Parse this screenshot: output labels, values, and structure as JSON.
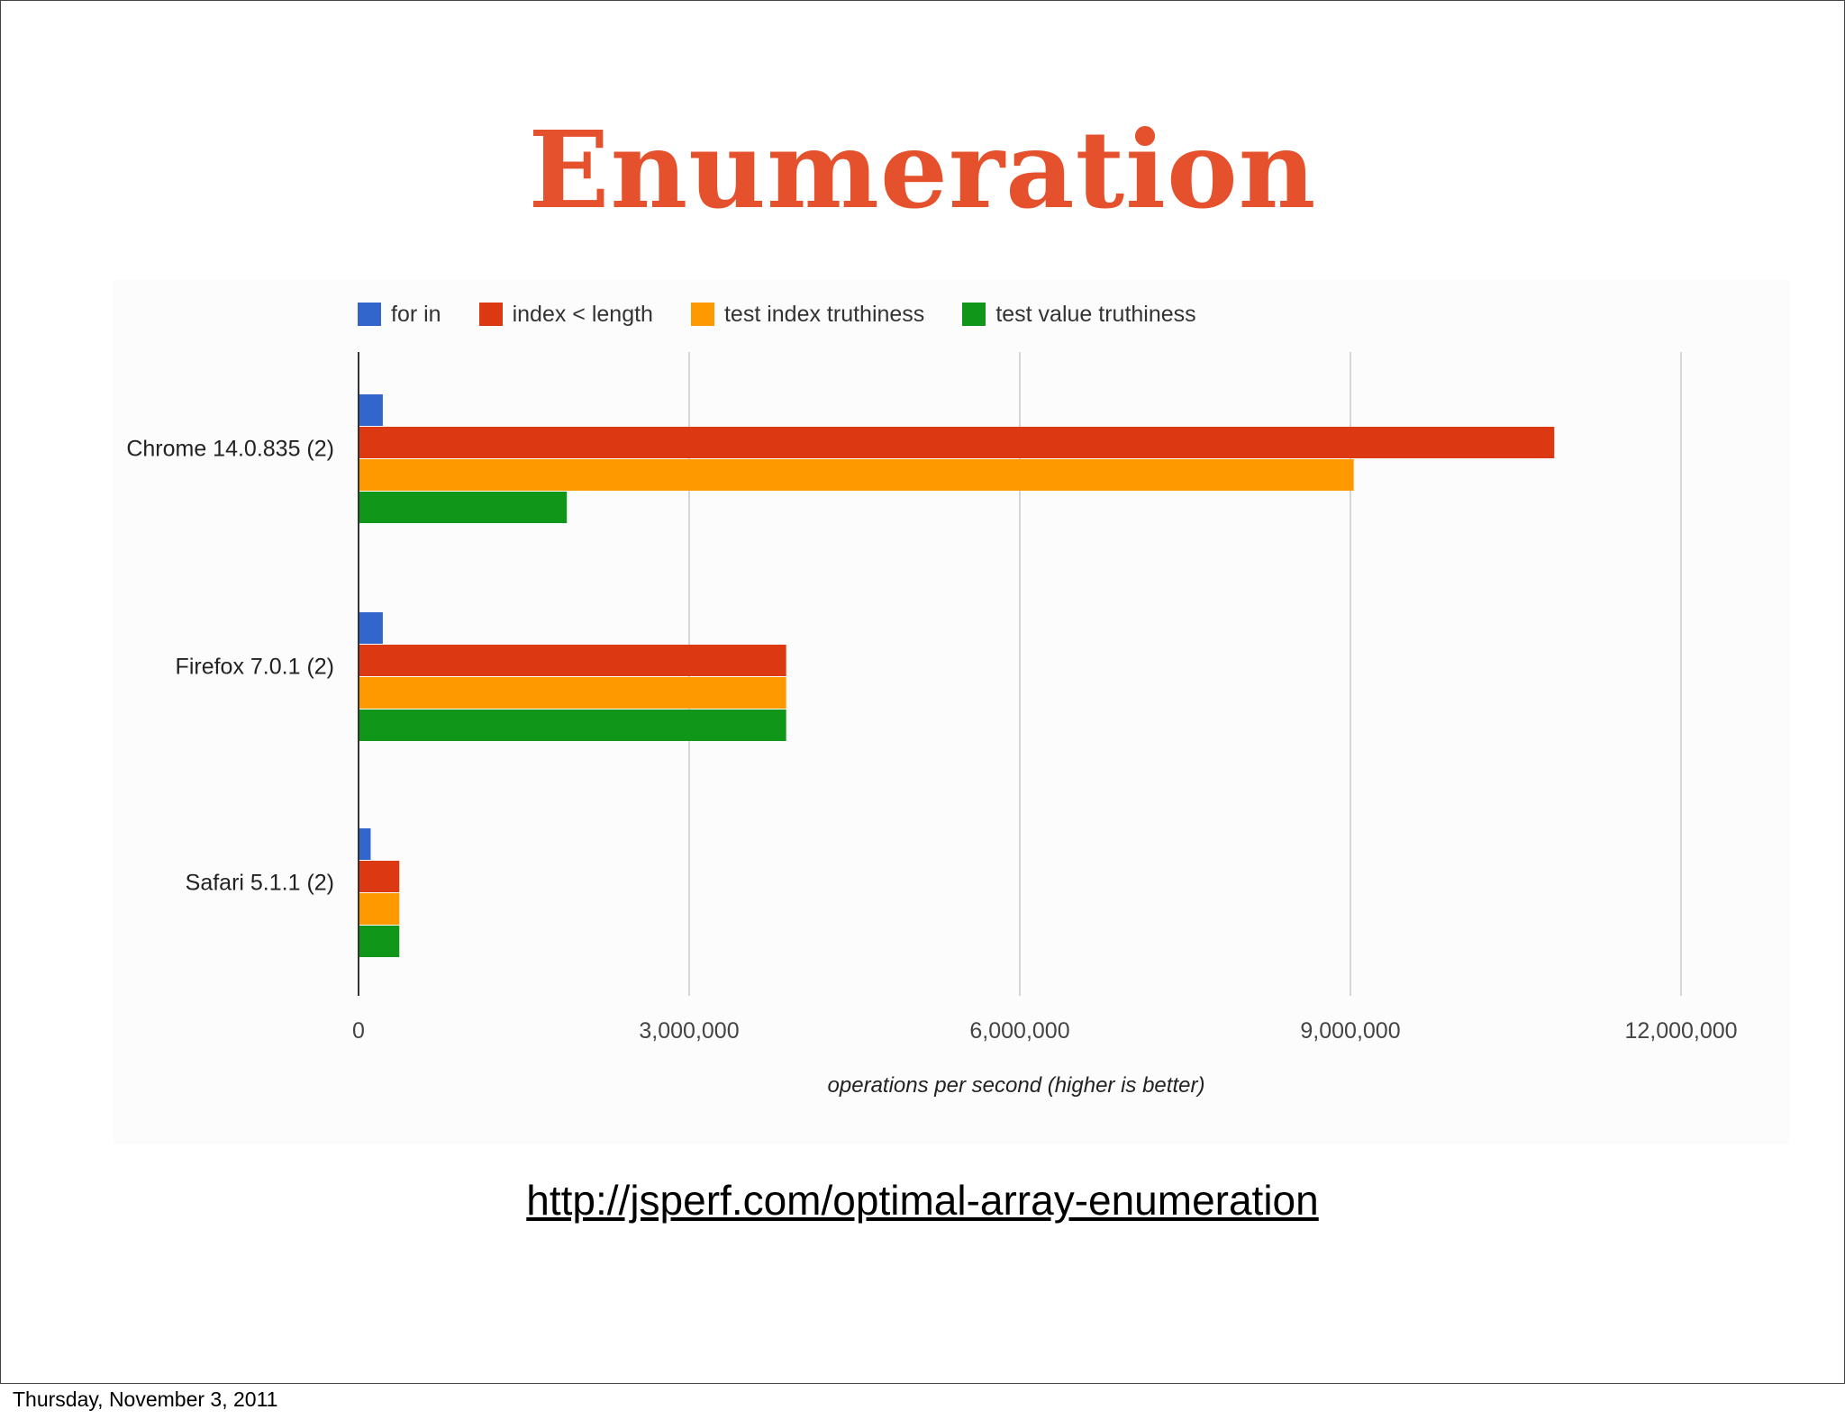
{
  "slide": {
    "title": "Enumeration",
    "link": "http://jsperf.com/optimal-array-enumeration",
    "footer_date": "Thursday, November 3, 2011"
  },
  "chart_data": {
    "type": "bar",
    "orientation": "horizontal",
    "categories": [
      "Chrome 14.0.835 (2)",
      "Firefox 7.0.1 (2)",
      "Safari 5.1.1 (2)"
    ],
    "series": [
      {
        "name": "for in",
        "color": "#3366cc",
        "values": [
          220000,
          220000,
          110000
        ]
      },
      {
        "name": "index < length",
        "color": "#dc3912",
        "values": [
          10850000,
          3880000,
          370000
        ]
      },
      {
        "name": "test index truthiness",
        "color": "#ff9900",
        "values": [
          9030000,
          3880000,
          370000
        ]
      },
      {
        "name": "test value truthiness",
        "color": "#109618",
        "values": [
          1890000,
          3880000,
          370000
        ]
      }
    ],
    "x_ticks": [
      0,
      3000000,
      6000000,
      9000000,
      12000000
    ],
    "x_tick_labels": [
      "0",
      "3,000,000",
      "6,000,000",
      "9,000,000",
      "12,000,000"
    ],
    "xlim": [
      0,
      12000000
    ],
    "xlabel": "operations per second (higher is better)",
    "ylabel": "",
    "grid": true,
    "legend_position": "top"
  }
}
